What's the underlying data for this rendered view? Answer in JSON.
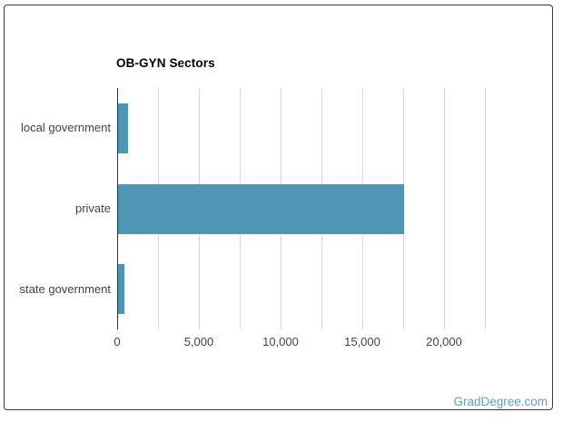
{
  "page": {
    "watermark": "GradDegree.com",
    "colors": {
      "bar": "#4f96b4",
      "grid": "#d9d9d9",
      "axis": "#333333",
      "label": "#444444",
      "watermark": "#62a1bd",
      "card_border": "#3b3b3b"
    }
  },
  "chart_data": {
    "type": "bar",
    "orientation": "horizontal",
    "title": "OB-GYN Sectors",
    "categories": [
      "local government",
      "private",
      "state government"
    ],
    "values": [
      600,
      17500,
      400
    ],
    "xlabel": "",
    "ylabel": "",
    "xlim": [
      0,
      22500
    ],
    "gridline_step": 2500,
    "grid": true,
    "legend": "none",
    "x_ticks": [
      {
        "value": 0,
        "label": "0"
      },
      {
        "value": 5000,
        "label": "5,000"
      },
      {
        "value": 10000,
        "label": "10,000"
      },
      {
        "value": 15000,
        "label": "15,000"
      },
      {
        "value": 20000,
        "label": "20,000"
      }
    ]
  }
}
